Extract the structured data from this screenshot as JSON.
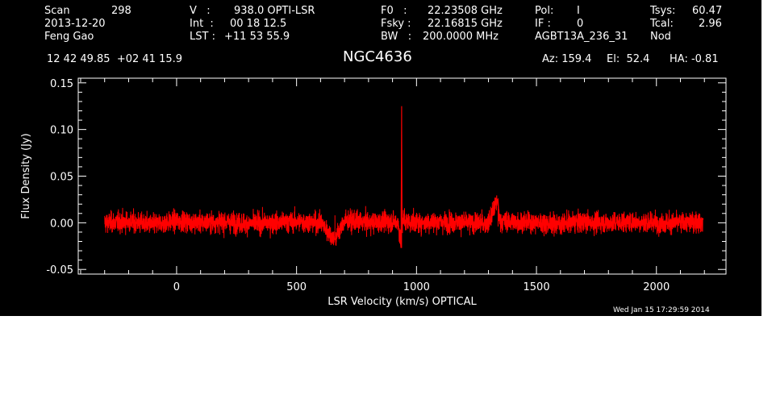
{
  "header": {
    "scan_label": "Scan",
    "scan_value": "298",
    "date": "2013-12-20",
    "observer": "Feng Gao",
    "v_label": "V   :",
    "v_value": "938.0 OPTI-LSR",
    "int_label": "Int  :",
    "int_value": "00 18 12.5",
    "lst_label": "LST :",
    "lst_value": "+11 53 55.9",
    "f0_label": "F0   :",
    "f0_value": "22.23508 GHz",
    "fsky_label": "Fsky :",
    "fsky_value": "22.16815 GHz",
    "bw_label": "BW   :",
    "bw_value": "200.0000 MHz",
    "pol_label": "Pol:",
    "pol_value": "I",
    "if_label": "IF :",
    "if_value": "0",
    "project": "AGBT13A_236_31",
    "tsys_label": "Tsys:",
    "tsys_value": "60.47",
    "tcal_label": "Tcal:",
    "tcal_value": "2.96",
    "mode": "Nod",
    "coords": "12 42 49.85  +02 41 15.9",
    "source": "NGC4636",
    "az": "Az: 159.4",
    "el": "El:  52.4",
    "ha": "HA: -0.81"
  },
  "timestamp": "Wed Jan 15 17:29:59 2014",
  "colors": {
    "background": "#000000",
    "axes": "#ffffff",
    "series": "#ff0000"
  },
  "chart_data": {
    "type": "line",
    "title": "NGC4636",
    "xlabel": "LSR Velocity (km/s) OPTICAL",
    "ylabel": "Flux Density (Jy)",
    "xlim": [
      -410,
      2290
    ],
    "ylim": [
      -0.055,
      0.155
    ],
    "xticks": [
      0,
      500,
      1000,
      1500,
      2000
    ],
    "xtick_labels": [
      "0",
      "500",
      "1000",
      "1500",
      "2000"
    ],
    "yticks": [
      -0.05,
      0.0,
      0.05,
      0.1,
      0.15
    ],
    "ytick_labels": [
      "-0.05",
      "0.00",
      "0.05",
      "0.10",
      "0.15"
    ],
    "grid": false,
    "legend": "none",
    "series": [
      {
        "values_note": "noisy baseline around 0 Jy with rms ~0.006 Jy spanning -300 to 2195 km/s",
        "x": [
          -300,
          -200,
          -100,
          0,
          100,
          200,
          300,
          400,
          500,
          600,
          660,
          700,
          800,
          900,
          925,
          935,
          938,
          940,
          945,
          960,
          1000,
          1100,
          1200,
          1300,
          1340,
          1345,
          1400,
          1500,
          1600,
          1700,
          1800,
          1900,
          2000,
          2100,
          2195
        ],
        "y": [
          0.0,
          0.001,
          -0.002,
          0.002,
          0.0,
          0.001,
          -0.001,
          0.0,
          0.001,
          0.0,
          -0.018,
          0.002,
          0.0,
          0.001,
          0.0,
          -0.027,
          0.125,
          -0.003,
          0.004,
          0.001,
          0.0,
          0.001,
          0.0,
          -0.001,
          0.026,
          0.002,
          0.001,
          0.0,
          -0.001,
          0.001,
          0.0,
          0.001,
          0.0,
          0.0,
          0.001
        ]
      }
    ]
  }
}
